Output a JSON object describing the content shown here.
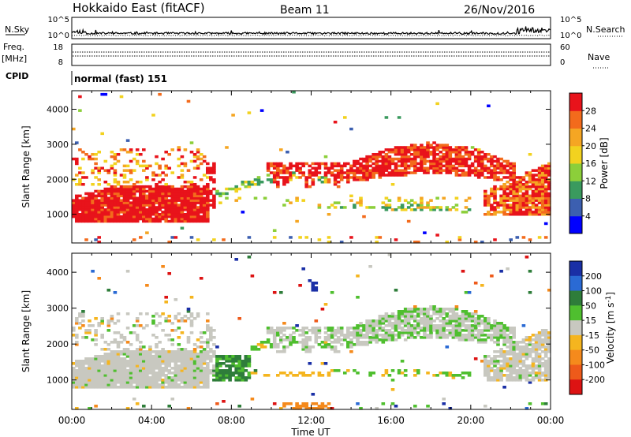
{
  "header": {
    "station": "Hokkaido East (fitACF)",
    "beam": "Beam 11",
    "date": "26/Nov/2016"
  },
  "labels": {
    "nsky": "N.Sky",
    "nsearch": "N.Search",
    "freq": "Freq.",
    "freq_unit": "[MHz]",
    "nave": "Nave",
    "cpid": "CPID",
    "cpid_value": "normal (fast) 151",
    "slant_range": "Slant Range [km]",
    "time_ut": "Time UT"
  },
  "chart_data": [
    {
      "type": "line",
      "title": "",
      "ylabel_left": "N.Sky",
      "ylabel_right": "N.Search",
      "yticks": [
        "10^5",
        "10^0"
      ],
      "note": "Noise level strip, log scale"
    },
    {
      "type": "line",
      "ylabel_left": "Freq. [MHz]",
      "ylabel_right": "Nave",
      "left_ticks": [
        "18",
        "8"
      ],
      "right_ticks": [
        "60",
        "0"
      ],
      "cpid": "normal (fast) 151"
    },
    {
      "type": "heatmap",
      "name": "power",
      "xlabel": "",
      "ylabel": "Slant Range [km]",
      "x_ticks": [
        "00:00",
        "04:00",
        "08:00",
        "12:00",
        "16:00",
        "20:00",
        "00:00"
      ],
      "y_ticks": [
        "1000",
        "2000",
        "3000",
        "4000"
      ],
      "ylim": [
        180,
        4530
      ],
      "xlim_hours": [
        0,
        24
      ],
      "colorbar_label": "Power [dB]",
      "colorbar_ticks": [
        "4",
        "8",
        "12",
        "16",
        "20",
        "24",
        "28"
      ],
      "colorbar_colors": [
        "#0000ff",
        "#3c5fb0",
        "#3a9a5e",
        "#8ccf3a",
        "#f2d21f",
        "#f5a623",
        "#f36b1c",
        "#e8131b"
      ],
      "colorbar_range": [
        0,
        32
      ]
    },
    {
      "type": "heatmap",
      "name": "velocity",
      "xlabel": "Time UT",
      "ylabel": "Slant Range [km]",
      "x_ticks": [
        "00:00",
        "04:00",
        "08:00",
        "12:00",
        "16:00",
        "20:00",
        "00:00"
      ],
      "y_ticks": [
        "1000",
        "2000",
        "3000",
        "4000"
      ],
      "ylim": [
        180,
        4530
      ],
      "xlim_hours": [
        0,
        24
      ],
      "colorbar_label": "Velocity [m s^-1]",
      "colorbar_ticks": [
        "200",
        "100",
        "50",
        "15",
        "-15",
        "-50",
        "-100",
        "-200"
      ],
      "colorbar_colors": [
        "#1a2fa6",
        "#2a6ad4",
        "#2e7d3a",
        "#4fbf2f",
        "#c8c8c0",
        "#f5b51f",
        "#f58a1c",
        "#ee5a1a",
        "#dd1313"
      ]
    }
  ]
}
